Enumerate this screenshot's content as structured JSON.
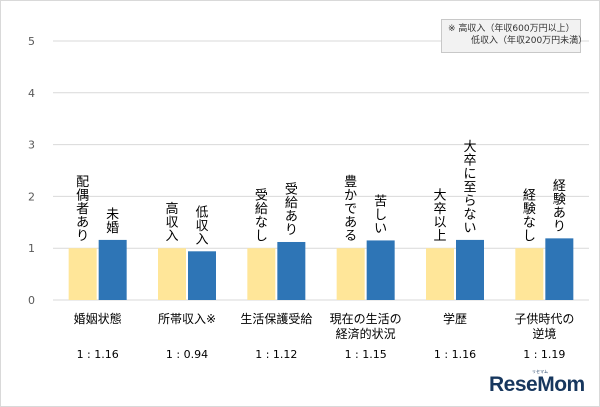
{
  "chart_data": {
    "type": "bar",
    "ylim": [
      0,
      5
    ],
    "yticks": [
      0,
      1,
      2,
      3,
      4,
      5
    ],
    "colors": {
      "low": "#ffe699",
      "high": "#2e75b6"
    },
    "groups": [
      {
        "category": [
          "婚姻状態"
        ],
        "labels": [
          "配偶者あり",
          "未婚"
        ],
        "values": [
          1,
          1.16
        ],
        "ratio": "1 : 1.16"
      },
      {
        "category": [
          "所帯収入※"
        ],
        "labels": [
          "高収入",
          "低収入"
        ],
        "values": [
          1,
          0.94
        ],
        "ratio": "1 : 0.94"
      },
      {
        "category": [
          "生活保護受給"
        ],
        "labels": [
          "受給なし",
          "受給あり"
        ],
        "values": [
          1,
          1.12
        ],
        "ratio": "1 : 1.12"
      },
      {
        "category": [
          "現在の生活の",
          "経済的状況"
        ],
        "labels": [
          "豊かである",
          "苦しい"
        ],
        "values": [
          1,
          1.15
        ],
        "ratio": "1 : 1.15"
      },
      {
        "category": [
          "学歴"
        ],
        "labels": [
          "大卒以上",
          "大卒に至らない"
        ],
        "values": [
          1,
          1.16
        ],
        "ratio": "1 : 1.16"
      },
      {
        "category": [
          "子供時代の",
          "逆境"
        ],
        "labels": [
          "経験なし",
          "経験あり"
        ],
        "values": [
          1,
          1.19
        ],
        "ratio": "1 : 1.19"
      }
    ]
  },
  "note": {
    "line1": "※ 高収入（年収600万円以上）",
    "line2": "低収入（年収200万円未満）"
  },
  "watermark": {
    "brand": "ReseMom",
    "brand_sub": "リセマム"
  }
}
